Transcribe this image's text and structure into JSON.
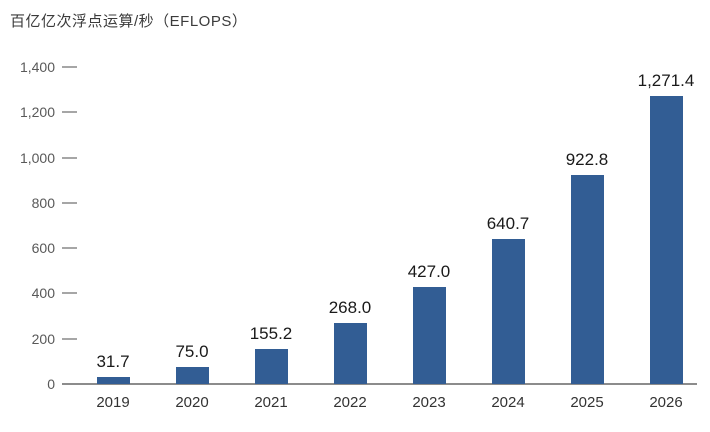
{
  "chart_data": {
    "type": "bar",
    "title": "百亿亿次浮点运算/秒（EFLOPS）",
    "xlabel": "",
    "ylabel": "百亿亿次浮点运算/秒（EFLOPS）",
    "categories": [
      "2019",
      "2020",
      "2021",
      "2022",
      "2023",
      "2024",
      "2025",
      "2026"
    ],
    "values": [
      31.7,
      75.0,
      155.2,
      268.0,
      427.0,
      640.7,
      922.8,
      1271.4
    ],
    "value_labels": [
      "31.7",
      "75.0",
      "155.2",
      "268.0",
      "427.0",
      "640.7",
      "922.8",
      "1,271.4"
    ],
    "ylim": [
      0,
      1400
    ],
    "y_ticks": [
      {
        "value": 1400,
        "label": "1,400"
      },
      {
        "value": 1200,
        "label": "1,200"
      },
      {
        "value": 1000,
        "label": "1,000"
      },
      {
        "value": 800,
        "label": "800"
      },
      {
        "value": 600,
        "label": "600"
      },
      {
        "value": 400,
        "label": "400"
      },
      {
        "value": 200,
        "label": "200"
      },
      {
        "value": 0,
        "label": "0"
      }
    ],
    "grid": false,
    "legend": null
  },
  "colors": {
    "bar": "#325d94",
    "axis_line": "#8c8c8c",
    "tick_mark": "#a6a6a6",
    "y_label": "#595959",
    "x_label": "#333333",
    "value_label": "#1a1a1a",
    "title": "#3b3b3b",
    "background": "#ffffff"
  }
}
